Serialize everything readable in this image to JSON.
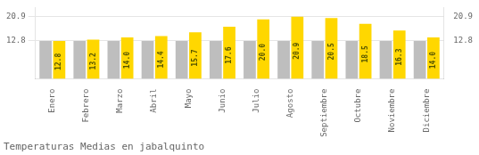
{
  "chart_data": {
    "type": "bar",
    "title": "Temperaturas Medias en jabalquinto",
    "categories": [
      "Enero",
      "Febrero",
      "Marzo",
      "Abril",
      "Mayo",
      "Junio",
      "Julio",
      "Agosto",
      "Septiembre",
      "Octubre",
      "Noviembre",
      "Diciembre"
    ],
    "series": [
      {
        "color": "#BEBEBE",
        "values": [
          12.8,
          12.8,
          12.8,
          12.8,
          12.8,
          12.8,
          12.8,
          12.8,
          12.8,
          12.8,
          12.8,
          12.8
        ]
      },
      {
        "color": "#FFD700",
        "values": [
          12.8,
          13.2,
          14.0,
          14.4,
          15.7,
          17.6,
          20.0,
          20.9,
          20.5,
          18.5,
          16.3,
          14.0
        ],
        "value_labels": [
          "12.8",
          "13.2",
          "14.0",
          "14.4",
          "15.7",
          "17.6",
          "20.0",
          "20.9",
          "20.5",
          "18.5",
          "16.3",
          "14.0"
        ],
        "data_labels": true
      }
    ],
    "ylim": [
      0,
      24.035
    ],
    "yticks": [
      12.8,
      20.9
    ],
    "y2lim": [
      0,
      24.035
    ],
    "y2ticks": [
      12.8,
      20.9
    ],
    "grid": true
  }
}
